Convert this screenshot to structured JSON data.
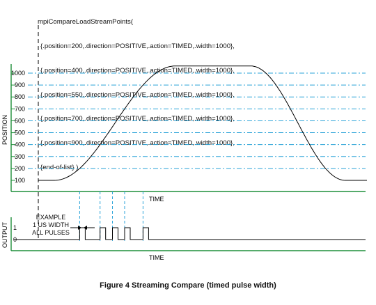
{
  "code": {
    "call": "mpiCompareLoadStreamPoints(",
    "lines": [
      "{.position=200,.direction=POSITIVE,.action=TIMED,.width=1000},",
      "{.position=400,.direction=POSITIVE,.action=TIMED,.width=1000},",
      "{.position=550,.direction=POSITIVE,.action=TIMED,.width=1000},",
      "{.position=700,.direction=POSITIVE,.action=TIMED,.width=1000},",
      "{.position=900,.direction=POSITIVE,.action=TIMED,.width=1000},",
      "{end-of-list} )"
    ]
  },
  "position_chart": {
    "ylabel": "POSITION",
    "xlabel": "TIME",
    "y_ticks": [
      100,
      200,
      300,
      400,
      500,
      600,
      700,
      800,
      900,
      1000
    ],
    "ylim": [
      100,
      1000
    ]
  },
  "output_chart": {
    "ylabel": "OUTPUT",
    "xlabel": "TIME",
    "y_ticks": [
      0,
      1
    ]
  },
  "annotation": {
    "line1": "EXAMPLE",
    "line2": "1 US WIDTH",
    "line3": "ALL PULSES"
  },
  "compare_positions": [
    200,
    400,
    550,
    700,
    900
  ],
  "colors": {
    "grid": "#2aa3d8",
    "axis": "#1e8f3a",
    "curve": "#000000",
    "dashed_start": "#000000"
  },
  "caption": "Figure 4 Streaming Compare (timed pulse width)"
}
